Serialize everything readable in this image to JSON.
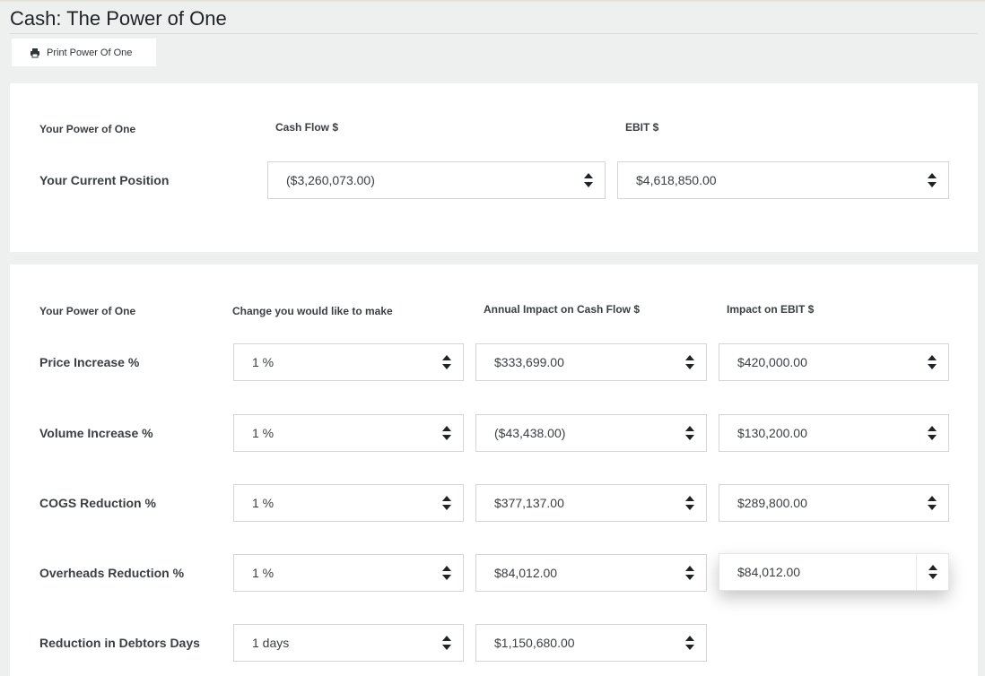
{
  "page": {
    "title": "Cash: The Power of One"
  },
  "toolbar": {
    "print_label": "Print Power Of One",
    "print_icon": "printer-icon"
  },
  "current": {
    "header_label": "Your Power of One",
    "col_cashflow": "Cash Flow $",
    "col_ebit": "EBIT $",
    "row_label": "Your Current Position",
    "cashflow_value": "($3,260,073.00)",
    "ebit_value": "$4,618,850.00"
  },
  "impact": {
    "header_label": "Your Power of One",
    "col_change": "Change you would like to make",
    "col_cashflow": "Annual Impact on Cash Flow $",
    "col_ebit": "Impact on EBIT $",
    "rows": [
      {
        "label": "Price Increase %",
        "change": "1 %",
        "cashflow": "$333,699.00",
        "ebit": "$420,000.00"
      },
      {
        "label": "Volume Increase %",
        "change": "1 %",
        "cashflow": "($43,438.00)",
        "ebit": "$130,200.00"
      },
      {
        "label": "COGS Reduction %",
        "change": "1 %",
        "cashflow": "$377,137.00",
        "ebit": "$289,800.00"
      },
      {
        "label": "Overheads Reduction %",
        "change": "1 %",
        "cashflow": "$84,012.00",
        "ebit": "$84,012.00"
      },
      {
        "label": "Reduction in Debtors Days",
        "change": "1 days",
        "cashflow": "$1,150,680.00"
      }
    ]
  }
}
